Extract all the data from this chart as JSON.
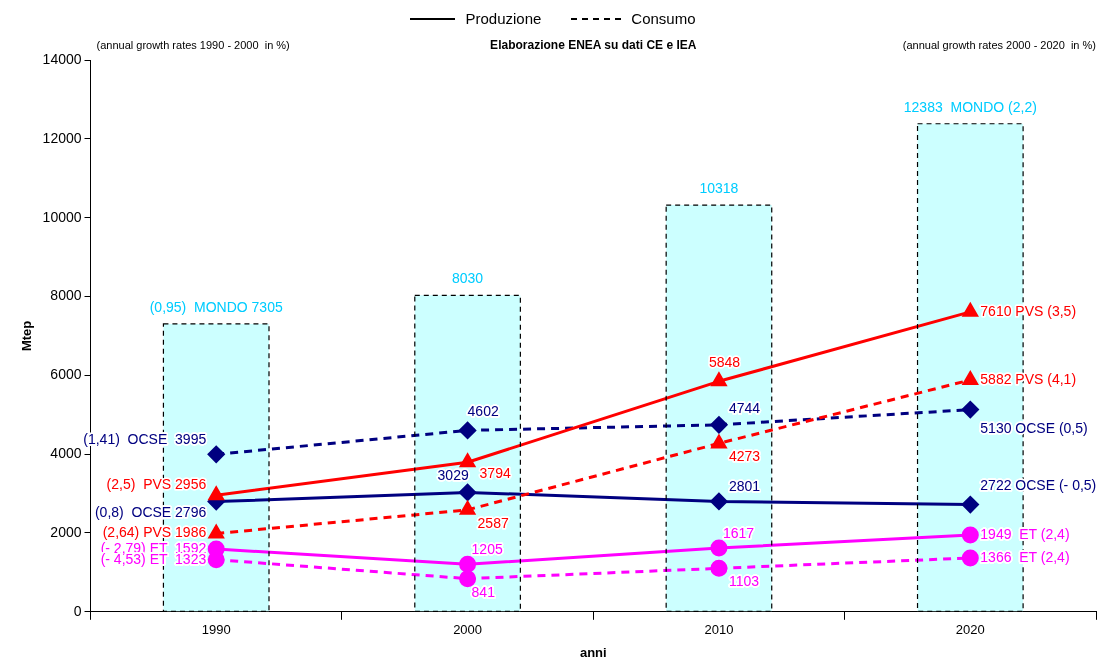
{
  "chart_data": {
    "type": "line",
    "title": "Elaborazione ENEA su dati CE e IEA",
    "xlabel": "anni",
    "ylabel": "Mtep",
    "annotations": [
      "(annual growth rates 1990 - 2000  in %)",
      "(annual growth rates 2000 - 2020  in %)",
      "Produzione",
      "Consumo"
    ],
    "categories": [
      "1990",
      "2000",
      "2010",
      "2020"
    ],
    "ylim": [
      0,
      14000
    ],
    "yticks": [
      0,
      2000,
      4000,
      6000,
      8000,
      10000,
      12000,
      14000
    ],
    "grid": false,
    "legend": false,
    "series": [
      {
        "type": "bar",
        "color": "#ccffff",
        "values": [
          7305,
          8030,
          10318,
          12383
        ],
        "value_labels": [
          "(0,95)  MONDO 7305",
          "8030",
          "10318",
          "12383  MONDO (2,2)"
        ]
      },
      {
        "color": "#ff0000",
        "marker": "triangle",
        "line_style": "solid",
        "values": [
          2956,
          3794,
          5848,
          7610
        ],
        "value_labels": [
          "(2,5)  PVS 2956",
          "3794",
          "5848",
          "7610 PVS (3,5)"
        ]
      },
      {
        "color": "#ff0000",
        "marker": "triangle",
        "line_style": "dashed",
        "values": [
          1986,
          2587,
          4273,
          5882
        ],
        "value_labels": [
          "(2,64) PVS 1986",
          "2587",
          "4273",
          "5882 PVS (4,1)"
        ]
      },
      {
        "color": "#000080",
        "marker": "diamond",
        "line_style": "solid",
        "values": [
          2796,
          3029,
          2801,
          2722
        ],
        "value_labels": [
          "(0,8)  OCSE 2796",
          "3029",
          "2801",
          "2722 OCSE (- 0,5)"
        ]
      },
      {
        "color": "#000080",
        "marker": "diamond",
        "line_style": "dashed",
        "values": [
          3995,
          4602,
          4744,
          5130
        ],
        "value_labels": [
          "(1,41)  OCSE  3995",
          "4602",
          "4744",
          "5130 OCSE (0,5)"
        ]
      },
      {
        "color": "#ff00ff",
        "marker": "circle",
        "line_style": "solid",
        "values": [
          1592,
          1205,
          1617,
          1949
        ],
        "value_labels": [
          "(- 2,79) ET  1592",
          "1205",
          "1617",
          "1949  ET (2,4)"
        ]
      },
      {
        "color": "#ff00ff",
        "marker": "circle",
        "line_style": "dashed",
        "values": [
          1323,
          841,
          1103,
          1366
        ],
        "value_labels": [
          "(- 4,53) ET  1323",
          "841",
          "1103",
          "1366  ET (2,4)"
        ]
      }
    ]
  }
}
